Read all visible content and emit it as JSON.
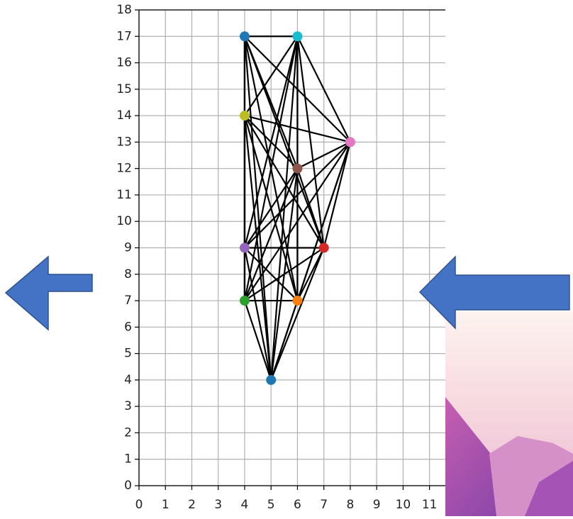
{
  "chart_data": {
    "type": "scatter",
    "x": [
      4,
      6,
      4,
      8,
      6,
      7,
      4,
      4,
      6,
      5
    ],
    "values": [
      17,
      17,
      14,
      13,
      12,
      9,
      9,
      7,
      7,
      4
    ],
    "colors": [
      "#1f77b4",
      "#17becf",
      "#bcbd22",
      "#e377c2",
      "#8c564b",
      "#d62728",
      "#9467bd",
      "#2ca02c",
      "#ff7f0e",
      "#1f77b4"
    ],
    "edge_color": "#000000",
    "xlim": [
      0,
      11.6
    ],
    "xticks": [
      0,
      1,
      2,
      3,
      4,
      5,
      6,
      7,
      8,
      9,
      10,
      11
    ],
    "ylim": [
      0,
      18
    ],
    "yticks": [
      0,
      1,
      2,
      3,
      4,
      5,
      6,
      7,
      8,
      9,
      10,
      11,
      12,
      13,
      14,
      15,
      16,
      17,
      18
    ],
    "grid": true
  }
}
